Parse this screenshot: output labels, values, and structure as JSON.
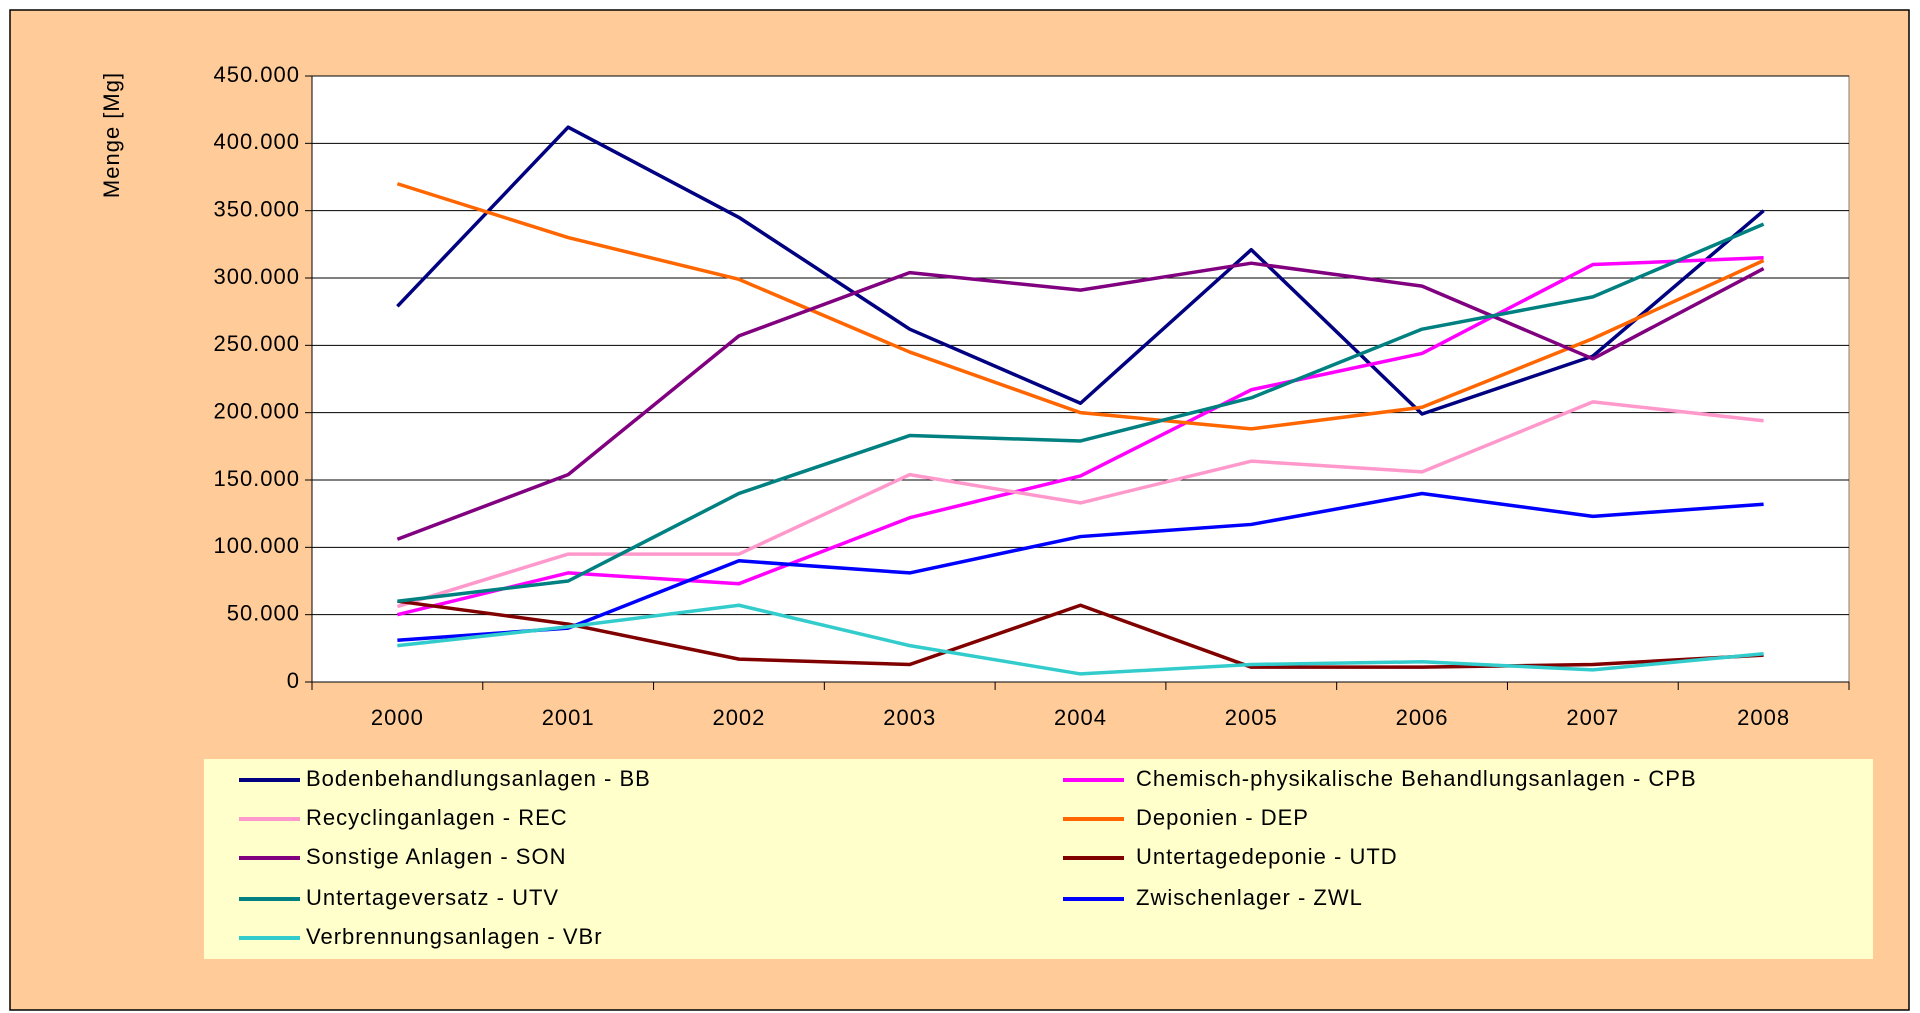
{
  "chart_data": {
    "type": "line",
    "ylabel": "Menge [Mg]",
    "categories": [
      "2000",
      "2001",
      "2002",
      "2003",
      "2004",
      "2005",
      "2006",
      "2007",
      "2008"
    ],
    "ylim": [
      0,
      450000
    ],
    "yticks": [
      0,
      {
        "value": 50000,
        "label": "50.000"
      },
      {
        "value": 100000,
        "label": "100.000"
      },
      {
        "value": 150000,
        "label": "150.000"
      },
      {
        "value": 200000,
        "label": "200.000"
      },
      {
        "value": 250000,
        "label": "250.000"
      },
      {
        "value": 300000,
        "label": "300.000"
      },
      {
        "value": 350000,
        "label": "350.000"
      },
      {
        "value": 400000,
        "label": "400.000"
      },
      {
        "value": 450000,
        "label": "450.000"
      }
    ],
    "grid": true,
    "legend": "bottom",
    "series": [
      {
        "name": "Bodenbehandlungsanlagen - BB",
        "color": "#000080",
        "values": [
          279000,
          412000,
          345000,
          262000,
          207000,
          321000,
          199000,
          242000,
          350000
        ]
      },
      {
        "name": "Chemisch-physikalische Behandlungsanlagen - CPB",
        "color": "#ff00ff",
        "values": [
          50000,
          81000,
          73000,
          122000,
          153000,
          217000,
          244000,
          310000,
          315000
        ]
      },
      {
        "name": "Recyclinganlagen - REC",
        "color": "#ff99cc",
        "values": [
          56000,
          95000,
          95000,
          154000,
          133000,
          164000,
          156000,
          208000,
          194000
        ]
      },
      {
        "name": "Deponien - DEP",
        "color": "#ff6600",
        "values": [
          370000,
          330000,
          299000,
          245000,
          200000,
          188000,
          204000,
          255000,
          313000
        ]
      },
      {
        "name": "Sonstige Anlagen - SON",
        "color": "#800080",
        "values": [
          106000,
          154000,
          257000,
          304000,
          291000,
          311000,
          294000,
          240000,
          307000
        ]
      },
      {
        "name": "Untertagedeponie - UTD",
        "color": "#800000",
        "values": [
          60000,
          43000,
          17000,
          13000,
          57000,
          11000,
          11000,
          13000,
          20000
        ]
      },
      {
        "name": "Untertageversatz - UTV",
        "color": "#008080",
        "values": [
          60000,
          75000,
          140000,
          183000,
          179000,
          211000,
          262000,
          286000,
          340000
        ]
      },
      {
        "name": "Zwischenlager - ZWL",
        "color": "#0000ff",
        "values": [
          31000,
          40000,
          90000,
          81000,
          108000,
          117000,
          140000,
          123000,
          132000
        ]
      },
      {
        "name": "Verbrennungsanlagen - VBr",
        "color": "#33cccc",
        "values": [
          27000,
          41000,
          57000,
          27000,
          6000,
          13000,
          15000,
          9000,
          21000
        ]
      }
    ]
  }
}
